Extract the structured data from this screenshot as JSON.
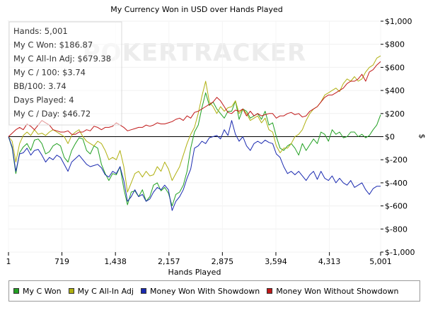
{
  "chart_data": {
    "type": "line",
    "title": "My Currency Won in USD over Hands Played",
    "xlabel": "Hands Played",
    "ylabel": "$",
    "xlim": [
      1,
      5001
    ],
    "ylim": [
      -1000,
      1000
    ],
    "x_ticks": [
      "1",
      "719",
      "1,438",
      "2,157",
      "2,875",
      "3,594",
      "4,313",
      "5,001"
    ],
    "x_tick_values": [
      1,
      719,
      1438,
      2157,
      2875,
      3594,
      4313,
      5001
    ],
    "y_ticks": [
      "$1,000",
      "$800",
      "$600",
      "$400",
      "$200",
      "$0",
      "$-200",
      "$-400",
      "$-600",
      "$-800",
      "$-1,000"
    ],
    "y_tick_values": [
      1000,
      800,
      600,
      400,
      200,
      0,
      -200,
      -400,
      -600,
      -800,
      -1000
    ],
    "watermark": "POKERTRACKER",
    "stats": [
      "Hands: 5,001",
      "My C Won: $186.87",
      "My C All-In Adj: $679.38",
      "My C / 100: $3.74",
      "BB/100: 3.74",
      "Days Played: 4",
      "My C / Day: $46.72"
    ],
    "series": [
      {
        "name": "My C Won",
        "color": "#22a022",
        "x": [
          1,
          50,
          100,
          150,
          200,
          250,
          300,
          350,
          400,
          450,
          500,
          550,
          600,
          650,
          700,
          750,
          800,
          850,
          900,
          950,
          1000,
          1050,
          1100,
          1150,
          1200,
          1250,
          1300,
          1350,
          1400,
          1450,
          1500,
          1550,
          1600,
          1650,
          1700,
          1750,
          1800,
          1850,
          1900,
          1950,
          2000,
          2050,
          2100,
          2150,
          2200,
          2250,
          2300,
          2350,
          2400,
          2450,
          2500,
          2550,
          2600,
          2650,
          2700,
          2750,
          2800,
          2850,
          2900,
          2950,
          3000,
          3050,
          3100,
          3150,
          3200,
          3250,
          3300,
          3350,
          3400,
          3450,
          3500,
          3550,
          3600,
          3650,
          3700,
          3750,
          3800,
          3850,
          3900,
          3950,
          4000,
          4050,
          4100,
          4150,
          4200,
          4250,
          4300,
          4350,
          4400,
          4450,
          4500,
          4550,
          4600,
          4650,
          4700,
          4750,
          4800,
          4850,
          4900,
          4950,
          5001
        ],
        "values": [
          0,
          -100,
          -320,
          -140,
          -90,
          -60,
          -120,
          -30,
          -20,
          -60,
          -150,
          -130,
          -80,
          -60,
          -80,
          -180,
          -220,
          -120,
          -60,
          -10,
          -20,
          -120,
          -150,
          -80,
          -100,
          -240,
          -320,
          -380,
          -320,
          -330,
          -260,
          -450,
          -590,
          -480,
          -470,
          -520,
          -460,
          -560,
          -520,
          -420,
          -400,
          -470,
          -440,
          -490,
          -600,
          -500,
          -480,
          -420,
          -300,
          -100,
          40,
          100,
          250,
          380,
          270,
          300,
          240,
          200,
          160,
          220,
          220,
          310,
          150,
          240,
          220,
          160,
          180,
          200,
          150,
          220,
          100,
          120,
          0,
          -100,
          -120,
          -80,
          -60,
          -100,
          -160,
          -60,
          -120,
          -70,
          -20,
          -60,
          40,
          20,
          -40,
          60,
          20,
          40,
          -10,
          0,
          40,
          40,
          0,
          20,
          -10,
          10,
          60,
          100,
          190
        ]
      },
      {
        "name": "My C All-In Adj",
        "color": "#b0b010",
        "x": [
          1,
          50,
          100,
          150,
          200,
          250,
          300,
          350,
          400,
          450,
          500,
          550,
          600,
          650,
          700,
          750,
          800,
          850,
          900,
          950,
          1000,
          1050,
          1100,
          1150,
          1200,
          1250,
          1300,
          1350,
          1400,
          1450,
          1500,
          1550,
          1600,
          1650,
          1700,
          1750,
          1800,
          1850,
          1900,
          1950,
          2000,
          2050,
          2100,
          2150,
          2200,
          2250,
          2300,
          2350,
          2400,
          2450,
          2500,
          2550,
          2600,
          2650,
          2700,
          2750,
          2800,
          2850,
          2900,
          2950,
          3000,
          3050,
          3100,
          3150,
          3200,
          3250,
          3300,
          3350,
          3400,
          3450,
          3500,
          3550,
          3600,
          3650,
          3700,
          3750,
          3800,
          3850,
          3900,
          3950,
          4000,
          4050,
          4100,
          4150,
          4200,
          4250,
          4300,
          4350,
          4400,
          4450,
          4500,
          4550,
          4600,
          4650,
          4700,
          4750,
          4800,
          4850,
          4900,
          4950,
          5001
        ],
        "values": [
          0,
          -40,
          -220,
          -60,
          10,
          40,
          10,
          60,
          20,
          30,
          10,
          40,
          60,
          40,
          20,
          0,
          -60,
          10,
          40,
          60,
          0,
          -40,
          -60,
          -80,
          -40,
          -60,
          -120,
          -200,
          -180,
          -200,
          -120,
          -260,
          -480,
          -400,
          -320,
          -300,
          -350,
          -300,
          -340,
          -330,
          -260,
          -300,
          -220,
          -280,
          -380,
          -320,
          -260,
          -160,
          -60,
          20,
          80,
          200,
          350,
          480,
          300,
          260,
          200,
          260,
          220,
          250,
          260,
          310,
          200,
          240,
          200,
          140,
          160,
          180,
          120,
          160,
          60,
          40,
          -80,
          -140,
          -100,
          -100,
          -60,
          0,
          20,
          60,
          140,
          200,
          240,
          260,
          300,
          360,
          380,
          400,
          420,
          390,
          460,
          500,
          480,
          520,
          480,
          500,
          560,
          600,
          620,
          680,
          700
        ]
      },
      {
        "name": "Money Won With Showdown",
        "color": "#1a2ab0",
        "x": [
          1,
          50,
          100,
          150,
          200,
          250,
          300,
          350,
          400,
          450,
          500,
          550,
          600,
          650,
          700,
          750,
          800,
          850,
          900,
          950,
          1000,
          1050,
          1100,
          1150,
          1200,
          1250,
          1300,
          1350,
          1400,
          1450,
          1500,
          1550,
          1600,
          1650,
          1700,
          1750,
          1800,
          1850,
          1900,
          1950,
          2000,
          2050,
          2100,
          2150,
          2200,
          2250,
          2300,
          2350,
          2400,
          2450,
          2500,
          2550,
          2600,
          2650,
          2700,
          2750,
          2800,
          2850,
          2900,
          2950,
          3000,
          3050,
          3100,
          3150,
          3200,
          3250,
          3300,
          3350,
          3400,
          3450,
          3500,
          3550,
          3600,
          3650,
          3700,
          3750,
          3800,
          3850,
          3900,
          3950,
          4000,
          4050,
          4100,
          4150,
          4200,
          4250,
          4300,
          4350,
          4400,
          4450,
          4500,
          4550,
          4600,
          4650,
          4700,
          4750,
          4800,
          4850,
          4900,
          4950,
          5001
        ],
        "values": [
          0,
          -90,
          -300,
          -150,
          -140,
          -100,
          -160,
          -120,
          -110,
          -160,
          -220,
          -180,
          -200,
          -160,
          -180,
          -240,
          -300,
          -220,
          -190,
          -160,
          -200,
          -240,
          -260,
          -250,
          -240,
          -270,
          -330,
          -350,
          -300,
          -320,
          -260,
          -380,
          -560,
          -520,
          -460,
          -520,
          -500,
          -560,
          -540,
          -480,
          -440,
          -460,
          -420,
          -460,
          -640,
          -560,
          -520,
          -460,
          -360,
          -280,
          -100,
          -80,
          -40,
          -60,
          -10,
          0,
          10,
          -20,
          60,
          10,
          140,
          20,
          -40,
          0,
          -80,
          -120,
          -60,
          -40,
          -60,
          -30,
          -50,
          -60,
          -150,
          -180,
          -260,
          -320,
          -300,
          -330,
          -300,
          -340,
          -380,
          -330,
          -300,
          -370,
          -300,
          -360,
          -380,
          -340,
          -400,
          -360,
          -400,
          -420,
          -380,
          -440,
          -420,
          -400,
          -460,
          -500,
          -450,
          -430,
          -430
        ]
      },
      {
        "name": "Money Won Without Showdown",
        "color": "#c01818",
        "x": [
          1,
          50,
          100,
          150,
          200,
          250,
          300,
          350,
          400,
          450,
          500,
          550,
          600,
          650,
          700,
          750,
          800,
          850,
          900,
          950,
          1000,
          1050,
          1100,
          1150,
          1200,
          1250,
          1300,
          1350,
          1400,
          1450,
          1500,
          1550,
          1600,
          1650,
          1700,
          1750,
          1800,
          1850,
          1900,
          1950,
          2000,
          2050,
          2100,
          2150,
          2200,
          2250,
          2300,
          2350,
          2400,
          2450,
          2500,
          2550,
          2600,
          2650,
          2700,
          2750,
          2800,
          2850,
          2900,
          2950,
          3000,
          3050,
          3100,
          3150,
          3200,
          3250,
          3300,
          3350,
          3400,
          3450,
          3500,
          3550,
          3600,
          3650,
          3700,
          3750,
          3800,
          3850,
          3900,
          3950,
          4000,
          4050,
          4100,
          4150,
          4200,
          4250,
          4300,
          4350,
          4400,
          4450,
          4500,
          4550,
          4600,
          4650,
          4700,
          4750,
          4800,
          4850,
          4900,
          4950,
          5001
        ],
        "values": [
          0,
          30,
          60,
          80,
          60,
          110,
          90,
          60,
          100,
          140,
          120,
          100,
          60,
          50,
          40,
          40,
          50,
          20,
          20,
          40,
          40,
          60,
          50,
          90,
          80,
          60,
          80,
          80,
          90,
          120,
          100,
          80,
          50,
          60,
          70,
          80,
          80,
          100,
          90,
          100,
          120,
          110,
          110,
          120,
          130,
          150,
          160,
          140,
          180,
          160,
          210,
          220,
          240,
          260,
          280,
          300,
          340,
          310,
          260,
          210,
          200,
          230,
          220,
          240,
          180,
          220,
          180,
          200,
          180,
          190,
          200,
          200,
          160,
          180,
          180,
          200,
          210,
          190,
          200,
          170,
          180,
          220,
          240,
          260,
          300,
          340,
          360,
          360,
          380,
          400,
          420,
          460,
          480,
          480,
          500,
          540,
          480,
          560,
          580,
          620,
          650
        ]
      }
    ]
  }
}
